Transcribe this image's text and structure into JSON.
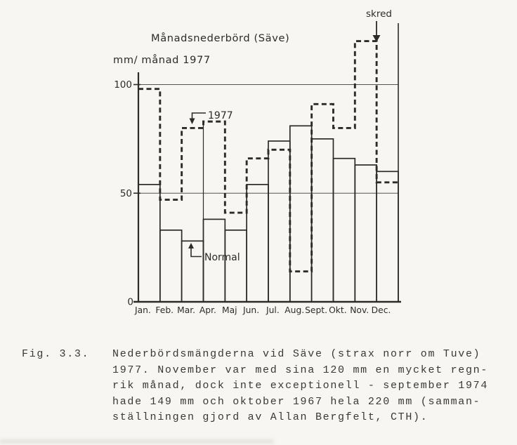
{
  "page": {
    "background": "#f7f6f2",
    "ink": "#2e2b27",
    "caption_color": "#3b3834"
  },
  "chart_data": {
    "type": "bar",
    "title": "Månadsnederbörd (Säve)",
    "unit_label": "mm/ månad 1977",
    "xlabel": "",
    "ylabel": "mm/månad",
    "categories": [
      "Jan.",
      "Feb.",
      "Mar.",
      "Apr.",
      "Maj",
      "Jun.",
      "Jul.",
      "Aug.",
      "Sept.",
      "Okt.",
      "Nov.",
      "Dec."
    ],
    "series": [
      {
        "name": "Normal",
        "line_style": "solid",
        "values": [
          54,
          33,
          28,
          38,
          33,
          54,
          74,
          81,
          75,
          66,
          63,
          60
        ]
      },
      {
        "name": "1977",
        "line_style": "dashed",
        "values": [
          98,
          47,
          80,
          83,
          41,
          66,
          70,
          14,
          91,
          80,
          120,
          55
        ]
      }
    ],
    "ylim": [
      0,
      125
    ],
    "yticks": [
      {
        "value": 100,
        "label": "100"
      },
      {
        "value": 50,
        "label": "50"
      },
      {
        "value": 0,
        "label": "0"
      }
    ],
    "gridlines": [
      50,
      100
    ],
    "grid": "horizontal-only",
    "legend_position": "inline-annotations",
    "annotation": {
      "label": "skred",
      "target_month": "Nov.",
      "target_value": 120
    }
  },
  "caption": {
    "label": "Fig. 3.3.",
    "lines": [
      "Nederbördsmängderna vid Säve (strax norr om Tuve)",
      "1977. November var med sina 120 mm en mycket regn-",
      "rik månad, dock inte exceptionell - september 1974",
      "hade 149 mm och oktober 1967 hela 220 mm (samman-",
      "ställningen gjord av Allan Bergfelt, CTH)."
    ]
  }
}
